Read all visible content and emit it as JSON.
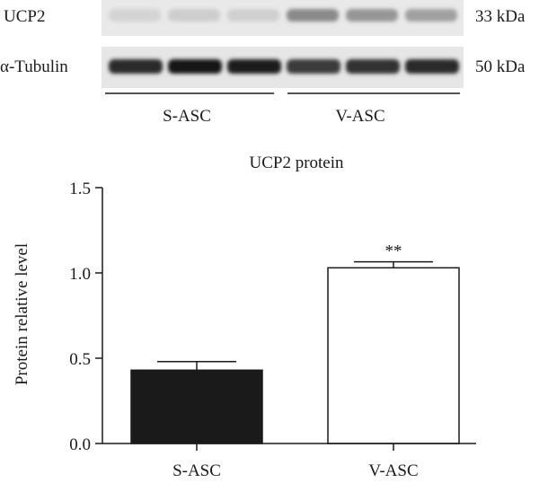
{
  "blot": {
    "rows": [
      {
        "protein": "UCP2",
        "mw": "33 kDa"
      },
      {
        "protein": "α-Tubulin",
        "mw": "50 kDa"
      }
    ],
    "groups": [
      "S-ASC",
      "V-ASC"
    ],
    "lanes_per_group": 3
  },
  "chart_data": {
    "type": "bar",
    "title": "UCP2 protein",
    "xlabel": "",
    "ylabel": "Protein relative level",
    "categories": [
      "S-ASC",
      "V-ASC"
    ],
    "values": [
      0.43,
      1.03
    ],
    "errors": [
      0.05,
      0.035
    ],
    "significance": [
      "",
      "**"
    ],
    "ylim": [
      0,
      1.5
    ],
    "yticks": [
      0.0,
      0.5,
      1.0,
      1.5
    ],
    "ytick_labels": [
      "0.0",
      "0.5",
      "1.0",
      "1.5"
    ],
    "grid": false,
    "bar_fills": [
      "#1a1a1a",
      "#ffffff"
    ],
    "bar_stroke": "#1a1a1a"
  }
}
